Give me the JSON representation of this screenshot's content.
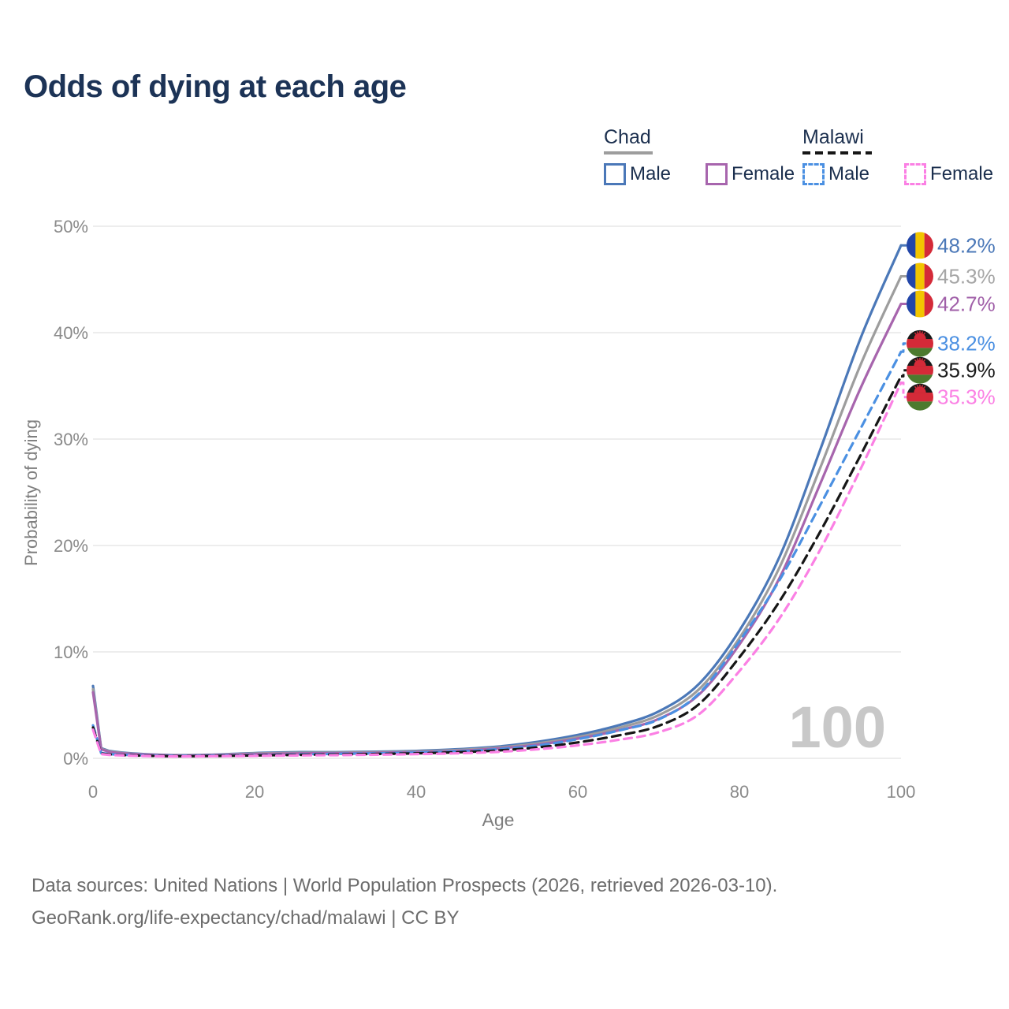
{
  "title": "Odds of dying at each age",
  "legend": {
    "groups": [
      {
        "label": "Chad",
        "line_style": "solid",
        "underline_color": "#9d9d9d",
        "items": [
          {
            "label": "Male",
            "color": "#4b78b8",
            "dashed": false
          },
          {
            "label": "Female",
            "color": "#a765ad",
            "dashed": false
          }
        ]
      },
      {
        "label": "Malawi",
        "line_style": "dashed",
        "underline_color": "#161616",
        "items": [
          {
            "label": "Male",
            "color": "#4b90e2",
            "dashed": true
          },
          {
            "label": "Female",
            "color": "#fb80e4",
            "dashed": true
          }
        ]
      }
    ]
  },
  "watermark": "100",
  "footer": {
    "line1": "Data sources: United Nations | World Population Prospects (2026, retrieved 2026-03-10).",
    "line2": "GeoRank.org/life-expectancy/chad/malawi | CC BY"
  },
  "chart_data": {
    "type": "line",
    "title": "Odds of dying at each age",
    "xlabel": "Age",
    "ylabel": "Probability of dying",
    "xlim": [
      0,
      100
    ],
    "ylim": [
      0,
      50
    ],
    "grid": true,
    "legend_position": "top-right",
    "x_ticks": [
      {
        "value": 0,
        "label": "0"
      },
      {
        "value": 20,
        "label": "20"
      },
      {
        "value": 40,
        "label": "40"
      },
      {
        "value": 60,
        "label": "60"
      },
      {
        "value": 80,
        "label": "80"
      },
      {
        "value": 100,
        "label": "100"
      }
    ],
    "y_ticks": [
      {
        "value": 0,
        "label": "0%"
      },
      {
        "value": 10,
        "label": "10%"
      },
      {
        "value": 20,
        "label": "20%"
      },
      {
        "value": 30,
        "label": "30%"
      },
      {
        "value": 40,
        "label": "40%"
      },
      {
        "value": 50,
        "label": "50%"
      }
    ],
    "ages": [
      0,
      1,
      2,
      5,
      10,
      15,
      20,
      25,
      30,
      35,
      40,
      45,
      50,
      55,
      60,
      65,
      70,
      75,
      80,
      85,
      90,
      95,
      100
    ],
    "series": [
      {
        "name": "Chad Male",
        "color": "#4b78b8",
        "dash": null,
        "flag": "chad",
        "end_label": "48.2%",
        "label_color": "#4b78b8",
        "values": [
          6.8,
          0.95,
          0.7,
          0.45,
          0.3,
          0.35,
          0.5,
          0.58,
          0.58,
          0.62,
          0.7,
          0.85,
          1.1,
          1.55,
          2.2,
          3.1,
          4.4,
          7.0,
          12.0,
          19.0,
          29.0,
          39.5,
          48.2
        ]
      },
      {
        "name": "Chad (both sexes)",
        "color": "#9d9d9d",
        "dash": null,
        "flag": "chad",
        "end_label": "45.3%",
        "label_color": "#a6a6a6",
        "values": [
          6.5,
          0.9,
          0.65,
          0.42,
          0.28,
          0.32,
          0.45,
          0.52,
          0.53,
          0.56,
          0.64,
          0.78,
          1.0,
          1.4,
          2.0,
          2.85,
          4.05,
          6.5,
          11.3,
          18.0,
          27.3,
          37.0,
          45.3
        ]
      },
      {
        "name": "Chad Female",
        "color": "#a765ad",
        "dash": null,
        "flag": "chad",
        "end_label": "42.7%",
        "label_color": "#a05fa8",
        "values": [
          6.2,
          0.85,
          0.6,
          0.4,
          0.27,
          0.3,
          0.4,
          0.46,
          0.48,
          0.51,
          0.58,
          0.7,
          0.92,
          1.28,
          1.85,
          2.62,
          3.7,
          6.0,
          10.7,
          17.0,
          25.8,
          34.8,
          42.7
        ]
      },
      {
        "name": "Malawi Male",
        "color": "#4b90e2",
        "dash": "10 7",
        "flag": "malawi",
        "end_label": "38.2%",
        "label_color": "#4b90e2",
        "values": [
          3.1,
          0.5,
          0.4,
          0.3,
          0.22,
          0.25,
          0.3,
          0.36,
          0.42,
          0.47,
          0.54,
          0.65,
          0.85,
          1.2,
          1.8,
          2.6,
          3.65,
          6.1,
          11.0,
          16.8,
          23.8,
          31.0,
          38.2
        ]
      },
      {
        "name": "Malawi (both sexes)",
        "color": "#161616",
        "dash": "11 7",
        "flag": "malawi",
        "end_label": "35.9%",
        "label_color": "#1b1b1b",
        "values": [
          2.9,
          0.45,
          0.36,
          0.27,
          0.2,
          0.22,
          0.27,
          0.32,
          0.36,
          0.41,
          0.47,
          0.57,
          0.73,
          1.02,
          1.5,
          2.15,
          3.05,
          5.1,
          9.5,
          14.8,
          21.3,
          28.5,
          35.9
        ]
      },
      {
        "name": "Malawi Female",
        "color": "#fb80e4",
        "dash": "10 7",
        "flag": "malawi",
        "end_label": "35.3%",
        "label_color": "#fb80e4",
        "values": [
          2.7,
          0.4,
          0.32,
          0.24,
          0.18,
          0.2,
          0.23,
          0.27,
          0.3,
          0.34,
          0.39,
          0.47,
          0.6,
          0.85,
          1.22,
          1.73,
          2.45,
          4.15,
          8.2,
          13.2,
          19.6,
          27.2,
          35.3
        ]
      }
    ]
  }
}
